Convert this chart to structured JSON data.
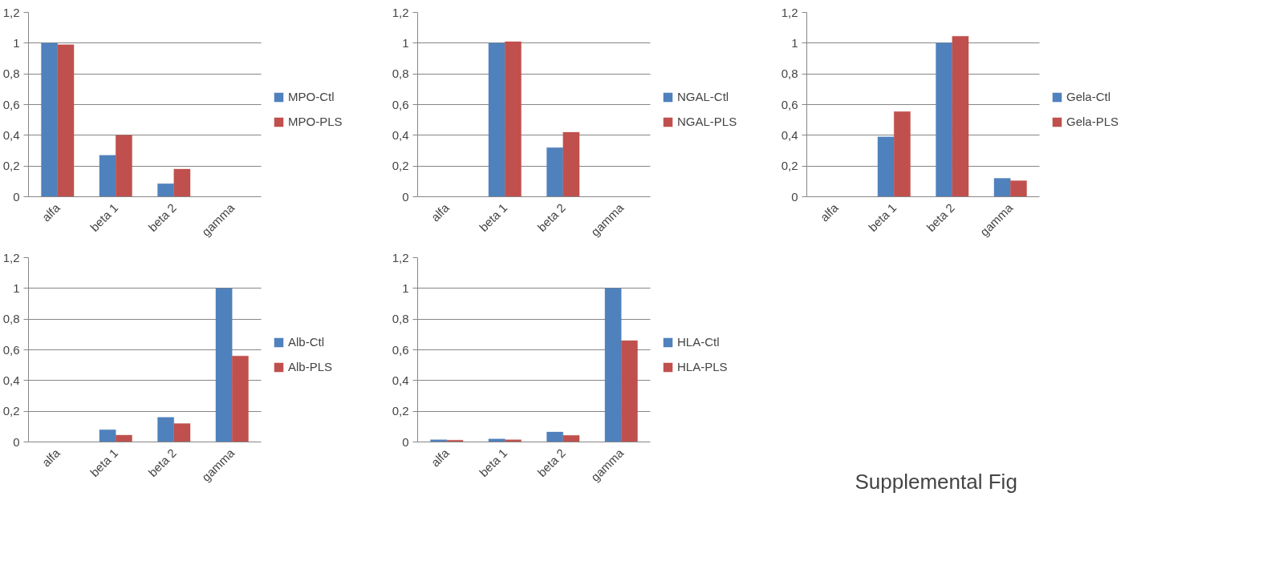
{
  "chart_data": [
    {
      "type": "bar",
      "categories": [
        "alfa",
        "beta 1",
        "beta 2",
        "gamma"
      ],
      "ylim": [
        0,
        1.2
      ],
      "yticks": [
        0,
        {
          "value": 0.2,
          "label": "0,2"
        },
        {
          "value": 0.4,
          "label": "0,4"
        },
        {
          "value": 0.6,
          "label": "0,6"
        },
        {
          "value": 0.8,
          "label": "0,8"
        },
        1,
        {
          "value": 1.2,
          "label": "1,2"
        }
      ],
      "grid": "y",
      "legend": "right",
      "series": [
        {
          "name": "MPO-Ctl",
          "color": "#4f81bd",
          "values": [
            1,
            0.27,
            0.085,
            null
          ]
        },
        {
          "name": "MPO-PLS",
          "color": "#c0504d",
          "values": [
            0.99,
            0.4,
            0.18,
            null
          ]
        }
      ]
    },
    {
      "type": "bar",
      "categories": [
        "alfa",
        "beta 1",
        "beta 2",
        "gamma"
      ],
      "ylim": [
        0,
        1.2
      ],
      "yticks": [
        0,
        {
          "value": 0.2,
          "label": "0,2"
        },
        {
          "value": 0.4,
          "label": "0,4"
        },
        {
          "value": 0.6,
          "label": "0,6"
        },
        {
          "value": 0.8,
          "label": "0,8"
        },
        1,
        {
          "value": 1.2,
          "label": "1,2"
        }
      ],
      "grid": "y",
      "legend": "right",
      "series": [
        {
          "name": "NGAL-Ctl",
          "color": "#4f81bd",
          "values": [
            null,
            1,
            0.32,
            null
          ]
        },
        {
          "name": "NGAL-PLS",
          "color": "#c0504d",
          "values": [
            null,
            1.01,
            0.42,
            null
          ]
        }
      ]
    },
    {
      "type": "bar",
      "categories": [
        "alfa",
        "beta 1",
        "beta 2",
        "gamma"
      ],
      "ylim": [
        0,
        1.2
      ],
      "yticks": [
        0,
        {
          "value": 0.2,
          "label": "0,2"
        },
        {
          "value": 0.4,
          "label": "0,4"
        },
        {
          "value": 0.6,
          "label": "0,6"
        },
        {
          "value": 0.8,
          "label": "0,8"
        },
        1,
        {
          "value": 1.2,
          "label": "1,2"
        }
      ],
      "grid": "y",
      "legend": "right",
      "series": [
        {
          "name": "Gela-Ctl",
          "color": "#4f81bd",
          "values": [
            null,
            0.39,
            1,
            0.12
          ]
        },
        {
          "name": "Gela-PLS",
          "color": "#c0504d",
          "values": [
            null,
            0.555,
            1.045,
            0.105
          ]
        }
      ]
    },
    {
      "type": "bar",
      "categories": [
        "alfa",
        "beta 1",
        "beta 2",
        "gamma"
      ],
      "ylim": [
        0,
        1.2
      ],
      "yticks": [
        0,
        {
          "value": 0.2,
          "label": "0,2"
        },
        {
          "value": 0.4,
          "label": "0,4"
        },
        {
          "value": 0.6,
          "label": "0,6"
        },
        {
          "value": 0.8,
          "label": "0,8"
        },
        1,
        {
          "value": 1.2,
          "label": "1,2"
        }
      ],
      "grid": "y",
      "legend": "right",
      "series": [
        {
          "name": "Alb-Ctl",
          "color": "#4f81bd",
          "values": [
            null,
            0.08,
            0.16,
            1
          ]
        },
        {
          "name": "Alb-PLS",
          "color": "#c0504d",
          "values": [
            null,
            0.045,
            0.12,
            0.56
          ]
        }
      ]
    },
    {
      "type": "bar",
      "categories": [
        "alfa",
        "beta 1",
        "beta 2",
        "gamma"
      ],
      "ylim": [
        0,
        1.2
      ],
      "yticks": [
        0,
        {
          "value": 0.2,
          "label": "0,2"
        },
        {
          "value": 0.4,
          "label": "0,4"
        },
        {
          "value": 0.6,
          "label": "0,6"
        },
        {
          "value": 0.8,
          "label": "0,8"
        },
        1,
        {
          "value": 1.2,
          "label": "1,2"
        }
      ],
      "grid": "y",
      "legend": "right",
      "series": [
        {
          "name": "HLA-Ctl",
          "color": "#4f81bd",
          "values": [
            0.015,
            0.02,
            0.065,
            1
          ]
        },
        {
          "name": "HLA-PLS",
          "color": "#c0504d",
          "values": [
            0.012,
            0.015,
            0.043,
            0.66
          ]
        }
      ]
    },
    {
      "type": "other",
      "annotations": [
        "Supplemental Fig"
      ]
    }
  ]
}
